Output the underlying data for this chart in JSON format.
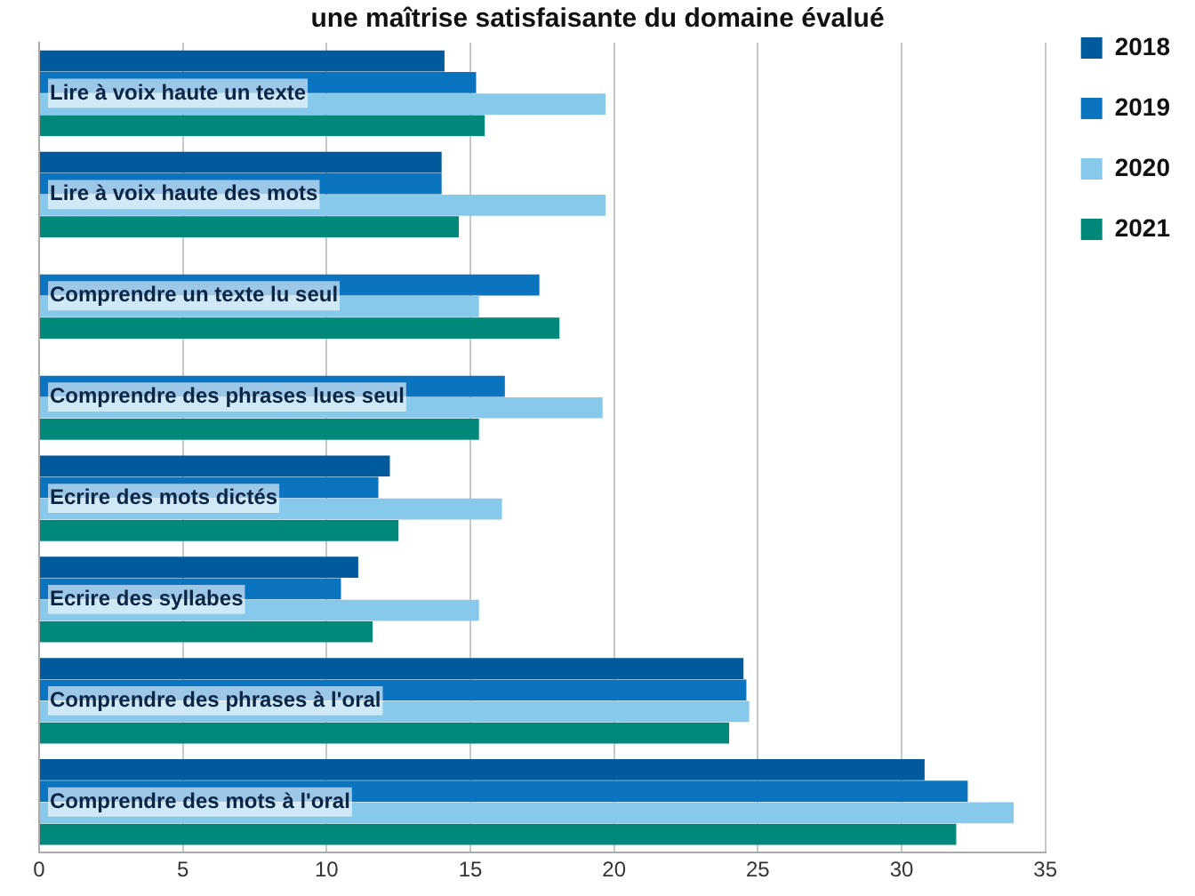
{
  "chart_data": {
    "type": "bar",
    "orientation": "horizontal",
    "title": "une maîtrise satisfaisante du domaine évalué",
    "categories": [
      "Lire à voix haute un texte",
      "Lire à voix haute des mots",
      "Comprendre un texte lu seul",
      "Comprendre des phrases lues seul",
      "Ecrire des mots dictés",
      "Ecrire des syllabes",
      "Comprendre des phrases à l'oral",
      "Comprendre des mots à l'oral"
    ],
    "series": [
      {
        "name": "2018",
        "color": "#005a9c",
        "values": [
          14.1,
          14.0,
          null,
          null,
          12.2,
          11.1,
          24.5,
          30.8
        ]
      },
      {
        "name": "2019",
        "color": "#0a74c0",
        "values": [
          15.2,
          14.0,
          17.4,
          16.2,
          11.8,
          10.5,
          24.6,
          32.3
        ]
      },
      {
        "name": "2020",
        "color": "#87c9ea",
        "values": [
          19.7,
          19.7,
          15.3,
          19.6,
          16.1,
          15.3,
          24.7,
          33.9
        ]
      },
      {
        "name": "2021",
        "color": "#00897b",
        "values": [
          15.5,
          14.6,
          18.1,
          15.3,
          12.5,
          11.6,
          24.0,
          31.9
        ]
      }
    ],
    "xlim": [
      0,
      35
    ],
    "xticks": [
      0,
      5,
      10,
      15,
      20,
      25,
      30,
      35
    ],
    "grid": "x",
    "legend": "right"
  }
}
